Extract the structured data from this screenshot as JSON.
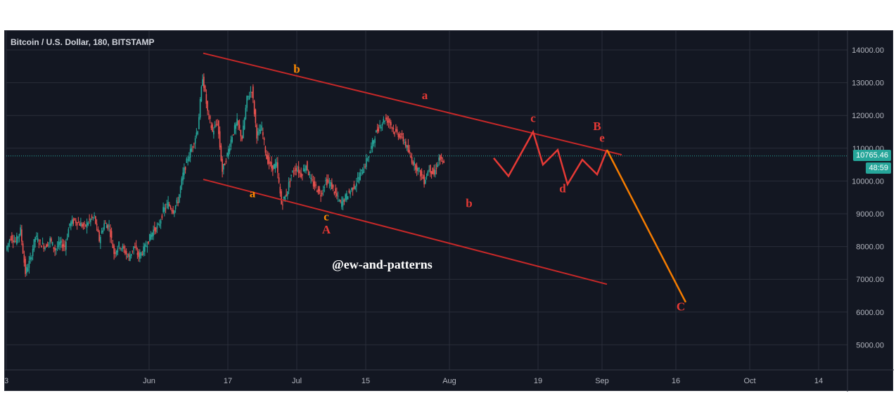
{
  "chart_data": {
    "type": "candlestick",
    "title": "Bitcoin / U.S. Dollar, 180, BITSTAMP",
    "watermark": "@ew-and-patterns",
    "y_ticks": [
      5000,
      6000,
      7000,
      8000,
      9000,
      10000,
      11000,
      12000,
      13000,
      14000
    ],
    "y_tick_labels": [
      "5000.00",
      "6000.00",
      "7000.00",
      "8000.00",
      "9000.00",
      "10000.00",
      "11000.00",
      "12000.00",
      "13000.00",
      "14000.00"
    ],
    "ylim": [
      4200,
      14500
    ],
    "x_ticks": [
      {
        "label": "3",
        "day": 0
      },
      {
        "label": "Jun",
        "day": 29
      },
      {
        "label": "17",
        "day": 45
      },
      {
        "label": "Jul",
        "day": 59
      },
      {
        "label": "15",
        "day": 73
      },
      {
        "label": "Aug",
        "day": 90
      },
      {
        "label": "19",
        "day": 108
      },
      {
        "label": "Sep",
        "day": 121
      },
      {
        "label": "16",
        "day": 136
      },
      {
        "label": "Oct",
        "day": 151
      },
      {
        "label": "14",
        "day": 165
      }
    ],
    "xlim": [
      0,
      172
    ],
    "last_price": "10765.46",
    "last_price_value": 10765.46,
    "countdown": "48:59",
    "price_path": [
      [
        0,
        7900
      ],
      [
        1,
        8300
      ],
      [
        2,
        8150
      ],
      [
        3,
        8500
      ],
      [
        4,
        7200
      ],
      [
        5,
        7600
      ],
      [
        6,
        8300
      ],
      [
        7,
        8100
      ],
      [
        8,
        8000
      ],
      [
        9,
        8200
      ],
      [
        10,
        7900
      ],
      [
        11,
        8100
      ],
      [
        12,
        8000
      ],
      [
        13,
        8700
      ],
      [
        14,
        8800
      ],
      [
        15,
        8700
      ],
      [
        16,
        8600
      ],
      [
        17,
        8800
      ],
      [
        18,
        8900
      ],
      [
        19,
        8200
      ],
      [
        20,
        8700
      ],
      [
        21,
        8600
      ],
      [
        22,
        7800
      ],
      [
        23,
        8050
      ],
      [
        24,
        7900
      ],
      [
        25,
        7650
      ],
      [
        26,
        8000
      ],
      [
        27,
        7700
      ],
      [
        28,
        7900
      ],
      [
        29,
        8200
      ],
      [
        30,
        8500
      ],
      [
        31,
        8600
      ],
      [
        32,
        9100
      ],
      [
        33,
        9300
      ],
      [
        34,
        9100
      ],
      [
        35,
        9400
      ],
      [
        36,
        10200
      ],
      [
        37,
        10700
      ],
      [
        38,
        11100
      ],
      [
        39,
        11600
      ],
      [
        40,
        13200
      ],
      [
        41,
        12100
      ],
      [
        42,
        11500
      ],
      [
        43,
        11800
      ],
      [
        44,
        10300
      ],
      [
        45,
        10800
      ],
      [
        46,
        11400
      ],
      [
        47,
        11800
      ],
      [
        48,
        11300
      ],
      [
        49,
        12500
      ],
      [
        50,
        12800
      ],
      [
        51,
        11400
      ],
      [
        52,
        11600
      ],
      [
        53,
        10700
      ],
      [
        54,
        10400
      ],
      [
        55,
        10500
      ],
      [
        56,
        9300
      ],
      [
        57,
        9600
      ],
      [
        58,
        10200
      ],
      [
        59,
        10400
      ],
      [
        60,
        10200
      ],
      [
        61,
        10500
      ],
      [
        62,
        10000
      ],
      [
        63,
        9800
      ],
      [
        64,
        9600
      ],
      [
        65,
        10000
      ],
      [
        66,
        9900
      ],
      [
        67,
        9600
      ],
      [
        68,
        9300
      ],
      [
        69,
        9500
      ],
      [
        70,
        9700
      ],
      [
        71,
        9900
      ],
      [
        72,
        10200
      ],
      [
        73,
        10500
      ],
      [
        74,
        10900
      ],
      [
        75,
        11400
      ],
      [
        76,
        11700
      ],
      [
        77,
        11900
      ],
      [
        78,
        11800
      ],
      [
        79,
        11500
      ],
      [
        80,
        11400
      ],
      [
        81,
        11200
      ],
      [
        82,
        10800
      ],
      [
        83,
        10500
      ],
      [
        84,
        10300
      ],
      [
        85,
        10000
      ],
      [
        86,
        10400
      ],
      [
        87,
        10200
      ],
      [
        88,
        10700
      ],
      [
        89,
        10500
      ]
    ],
    "overlay_lines": [
      {
        "name": "upper-channel",
        "color": "#c62828",
        "points": [
          [
            40,
            13900
          ],
          [
            125,
            10800
          ]
        ]
      },
      {
        "name": "lower-channel",
        "color": "#c62828",
        "points": [
          [
            40,
            10050
          ],
          [
            122,
            6850
          ]
        ]
      },
      {
        "name": "projected-wave",
        "color": "#e53935",
        "points": [
          [
            99,
            10700
          ],
          [
            102,
            10150
          ],
          [
            107,
            11500
          ],
          [
            109,
            10500
          ],
          [
            112,
            10950
          ],
          [
            114,
            9900
          ],
          [
            117,
            10650
          ],
          [
            120,
            10200
          ],
          [
            122,
            10950
          ]
        ]
      },
      {
        "name": "projected-c-wave",
        "color": "#f57c00",
        "points": [
          [
            122,
            10950
          ],
          [
            138,
            6300
          ]
        ]
      }
    ],
    "annotations": [
      {
        "text": "b",
        "x": 59,
        "y": 13300,
        "color": "#ff8a00"
      },
      {
        "text": "a",
        "x": 50,
        "y": 9500,
        "color": "#ff8a00"
      },
      {
        "text": "c",
        "x": 65,
        "y": 8800,
        "color": "#ff8a00"
      },
      {
        "text": "A",
        "x": 65,
        "y": 8400,
        "color": "#e53935"
      },
      {
        "text": "a",
        "x": 85,
        "y": 12500,
        "color": "#e53935"
      },
      {
        "text": "b",
        "x": 94,
        "y": 9200,
        "color": "#e53935"
      },
      {
        "text": "c",
        "x": 107,
        "y": 11800,
        "color": "#e53935"
      },
      {
        "text": "d",
        "x": 113,
        "y": 9650,
        "color": "#e53935"
      },
      {
        "text": "B",
        "x": 120,
        "y": 11550,
        "color": "#e53935"
      },
      {
        "text": "e",
        "x": 121,
        "y": 11200,
        "color": "#e53935"
      },
      {
        "text": "C",
        "x": 137,
        "y": 6050,
        "color": "#e53935"
      }
    ]
  }
}
